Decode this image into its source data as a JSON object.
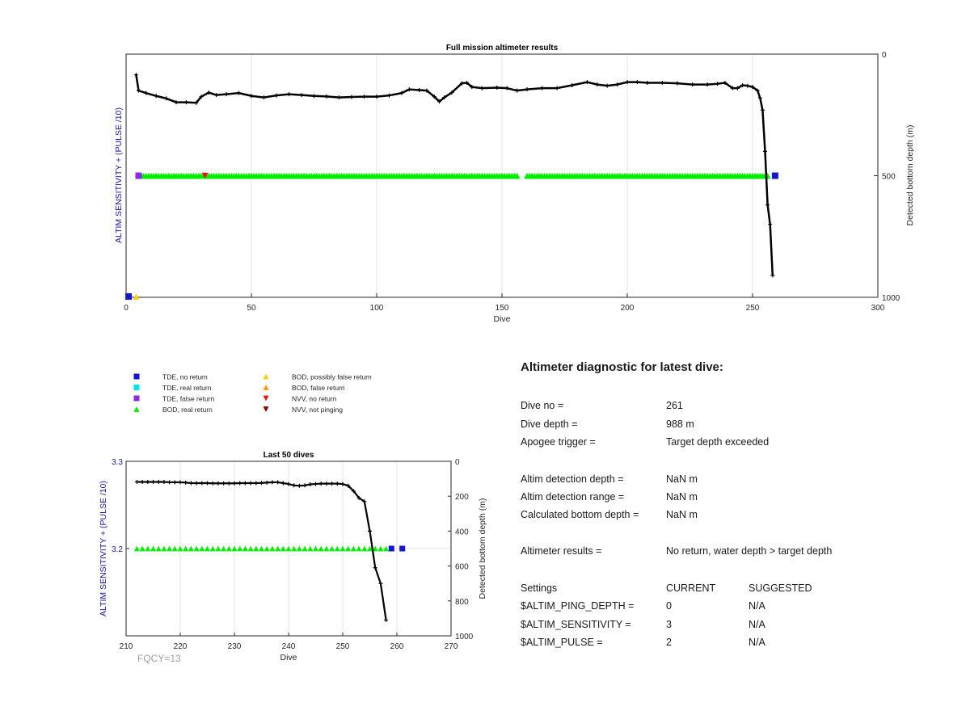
{
  "chart_data": [
    {
      "type": "line",
      "title": "Full mission altimeter results",
      "xlabel": "Dive",
      "ylabel_left": "ALTIM SENSITIVITY + (PULSE /10)",
      "ylabel_right": "Detected bottom depth (m)",
      "xlim": [
        0,
        300
      ],
      "xticks": [
        "0",
        "50",
        "100",
        "150",
        "200",
        "250",
        "300"
      ],
      "ylim_right": [
        0,
        1000
      ],
      "right_reversed": true,
      "yticks_right": [
        "0",
        "500",
        "1000"
      ],
      "grid": "vertical",
      "depth_series": {
        "name": "Detected bottom depth",
        "x": [
          4,
          5,
          8,
          12,
          16,
          20,
          24,
          28,
          30,
          33,
          36,
          40,
          45,
          50,
          55,
          60,
          65,
          70,
          75,
          80,
          85,
          90,
          95,
          100,
          105,
          110,
          113,
          117,
          120,
          123,
          125,
          127,
          130,
          134,
          136,
          138,
          142,
          148,
          152,
          156,
          160,
          166,
          172,
          178,
          184,
          188,
          192,
          196,
          200,
          204,
          208,
          214,
          220,
          226,
          232,
          236,
          239,
          242,
          244,
          246,
          248,
          250,
          252,
          253,
          254,
          255,
          256,
          257,
          258
        ],
        "y": [
          85,
          150,
          160,
          172,
          182,
          198,
          198,
          200,
          175,
          158,
          168,
          165,
          160,
          172,
          178,
          170,
          165,
          168,
          172,
          174,
          178,
          176,
          175,
          175,
          170,
          160,
          145,
          148,
          150,
          175,
          195,
          178,
          158,
          120,
          118,
          135,
          140,
          138,
          140,
          150,
          145,
          140,
          140,
          128,
          115,
          125,
          130,
          125,
          115,
          115,
          118,
          118,
          120,
          125,
          125,
          122,
          118,
          140,
          140,
          128,
          130,
          135,
          150,
          180,
          230,
          400,
          620,
          700,
          910
        ]
      },
      "markers": [
        {
          "kind": "BOD, real return",
          "dives_from": 6,
          "dives_to": 256,
          "gap": [
            157,
            159
          ],
          "depth": 500
        },
        {
          "kind": "TDE, false return",
          "dives": [
            5
          ],
          "depth": 500
        },
        {
          "kind": "NVV, no return",
          "dives": [
            31.5
          ],
          "depth": 500
        },
        {
          "kind": "TDE, no return",
          "dives": [
            259
          ],
          "depth": 500
        },
        {
          "kind": "TDE, no return",
          "dives": [
            1
          ],
          "depth": 1000
        },
        {
          "kind": "BOD, possibly false return",
          "dives": [
            4
          ],
          "depth": 1000
        }
      ]
    },
    {
      "type": "line",
      "title": "Last 50 dives",
      "xlabel": "Dive",
      "ylabel_left": "ALTIM SENSITIVITY + (PULSE /10)",
      "ylabel_right": "Detected bottom depth (m)",
      "xlim": [
        210,
        270
      ],
      "xticks": [
        "210",
        "220",
        "230",
        "240",
        "250",
        "260",
        "270"
      ],
      "ylim_left": [
        3.1,
        3.3
      ],
      "yticks_left": [
        "3.3",
        "3.2"
      ],
      "ylim_right": [
        0,
        1000
      ],
      "right_reversed": true,
      "yticks_right": [
        "0",
        "200",
        "400",
        "600",
        "800",
        "1000"
      ],
      "grid": "both",
      "depth_series": {
        "name": "Detected bottom depth",
        "x": [
          212,
          213,
          214,
          215,
          216,
          217,
          218,
          219,
          220,
          221,
          222,
          223,
          224,
          225,
          226,
          227,
          228,
          229,
          230,
          231,
          232,
          233,
          234,
          235,
          236,
          237,
          238,
          239,
          240,
          241,
          242,
          243,
          244,
          245,
          246,
          247,
          248,
          249,
          250,
          251,
          252,
          253,
          254,
          255,
          256,
          257,
          258
        ],
        "y": [
          118,
          118,
          118,
          118,
          118,
          118,
          120,
          120,
          120,
          122,
          125,
          125,
          125,
          125,
          126,
          126,
          126,
          126,
          126,
          125,
          125,
          125,
          125,
          124,
          122,
          120,
          120,
          125,
          130,
          138,
          140,
          138,
          132,
          130,
          128,
          128,
          128,
          128,
          130,
          140,
          170,
          210,
          230,
          400,
          610,
          700,
          910
        ]
      },
      "markers": [
        {
          "kind": "BOD, real return",
          "dives_from": 212,
          "dives_to": 258,
          "sensitivity": 3.2
        },
        {
          "kind": "TDE, no return",
          "dives": [
            259,
            261
          ],
          "sensitivity": 3.2
        }
      ],
      "footnote": "FQCY=13"
    }
  ],
  "legend": {
    "col1": [
      {
        "label": "TDE, no return",
        "color": "#1414d2",
        "shape": "square"
      },
      {
        "label": "TDE, real return",
        "color": "#00e5ee",
        "shape": "square"
      },
      {
        "label": "TDE, false return",
        "color": "#8a2be2",
        "shape": "square"
      },
      {
        "label": "BOD, real return",
        "color": "#00ee00",
        "shape": "triangle-up"
      }
    ],
    "col2": [
      {
        "label": "BOD, possibly false return",
        "color": "#ffcc00",
        "shape": "triangle-up"
      },
      {
        "label": "BOD, false return",
        "color": "#ff9900",
        "shape": "triangle-up"
      },
      {
        "label": "NVV, no return",
        "color": "#ee1111",
        "shape": "triangle-down"
      },
      {
        "label": "NVV, not pinging",
        "color": "#8b0000",
        "shape": "triangle-down"
      }
    ]
  },
  "diagnostic": {
    "title": "Altimeter diagnostic for latest dive:",
    "dive_no_label": "Dive no =",
    "dive_no": "261",
    "dive_depth_label": "Dive depth =",
    "dive_depth": "988 m",
    "apogee_label": "Apogee trigger =",
    "apogee": "Target depth exceeded",
    "det_depth_label": "Altim detection depth =",
    "det_depth": "NaN m",
    "det_range_label": "Altim detection range =",
    "det_range": "NaN m",
    "calc_depth_label": "Calculated bottom depth =",
    "calc_depth": "NaN m",
    "results_label": "Altimeter results =",
    "results": "No return, water depth > target depth",
    "settings_label": "Settings",
    "current_header": "CURRENT",
    "suggested_header": "SUGGESTED",
    "ping_label": "$ALTIM_PING_DEPTH =",
    "ping_current": "0",
    "ping_suggested": "N/A",
    "sens_label": "$ALTIM_SENSITIVITY =",
    "sens_current": "3",
    "sens_suggested": "N/A",
    "pulse_label": "$ALTIM_PULSE =",
    "pulse_current": "2",
    "pulse_suggested": "N/A"
  },
  "colors": {
    "axis": "#262626",
    "label_blue": "#1a1aa6",
    "line": "#000000",
    "grid": "#e6e6e6"
  }
}
